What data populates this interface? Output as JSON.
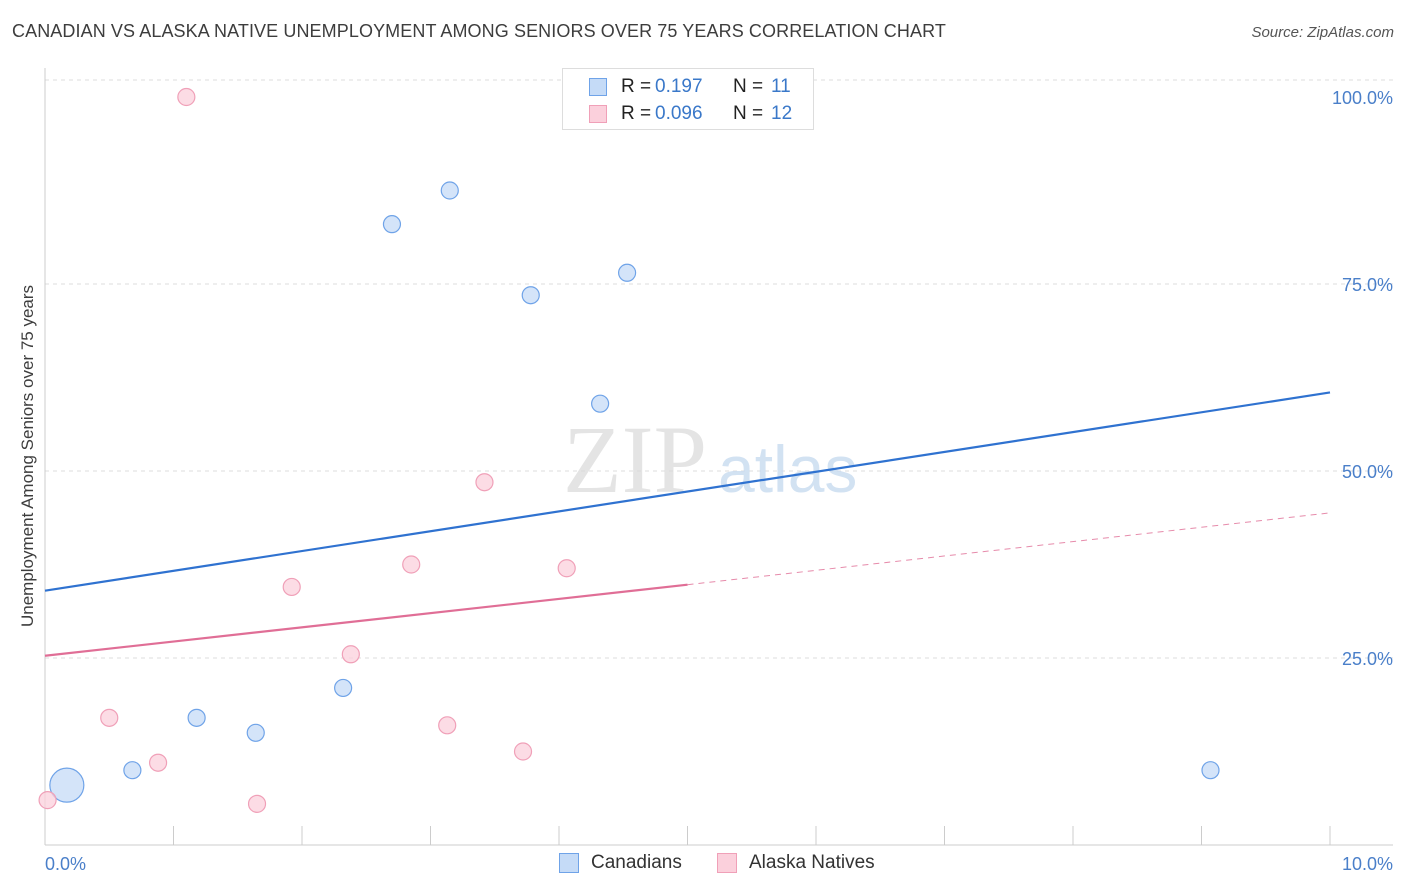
{
  "title": "CANADIAN VS ALASKA NATIVE UNEMPLOYMENT AMONG SENIORS OVER 75 YEARS CORRELATION CHART",
  "source": "Source: ZipAtlas.com",
  "watermark": {
    "zip": "ZIP",
    "atlas": "atlas"
  },
  "legend_top": {
    "rows": [
      {
        "r_label": "R =",
        "r_value": "0.197",
        "n_label": "N =",
        "n_value": "11"
      },
      {
        "r_label": "R =",
        "r_value": "0.096",
        "n_label": "N =",
        "n_value": "12"
      }
    ]
  },
  "legend_bottom": {
    "canadians": "Canadians",
    "alaska": "Alaska Natives"
  },
  "chart_data": {
    "type": "scatter",
    "title": "CANADIAN VS ALASKA NATIVE UNEMPLOYMENT AMONG SENIORS OVER 75 YEARS CORRELATION CHART",
    "xlabel": "",
    "ylabel": "Unemployment Among Seniors over 75 years",
    "xlim": [
      0,
      10
    ],
    "ylim": [
      0,
      100
    ],
    "x_tick_labels": [
      "0.0%",
      "10.0%"
    ],
    "y_ticks": [
      25,
      50,
      75,
      100
    ],
    "y_tick_labels": [
      "25.0%",
      "50.0%",
      "75.0%",
      "100.0%"
    ],
    "grid": true,
    "series": [
      {
        "name": "Canadians",
        "color": "#6fa3e8",
        "fill": "#c5dbf7",
        "line_color": "#2f72d0",
        "r": 0.197,
        "n": 11,
        "points": [
          {
            "x": 0.17,
            "y": 8.0,
            "size": "large"
          },
          {
            "x": 0.68,
            "y": 10.0
          },
          {
            "x": 1.18,
            "y": 17.0
          },
          {
            "x": 1.64,
            "y": 15.0
          },
          {
            "x": 2.32,
            "y": 21.0
          },
          {
            "x": 2.7,
            "y": 83.0
          },
          {
            "x": 3.15,
            "y": 87.5
          },
          {
            "x": 3.78,
            "y": 73.5
          },
          {
            "x": 4.32,
            "y": 59.0
          },
          {
            "x": 4.53,
            "y": 76.5
          },
          {
            "x": 9.07,
            "y": 10.0
          }
        ],
        "trend": {
          "x0": 0,
          "y0": 34.0,
          "x1": 10,
          "y1": 60.5
        }
      },
      {
        "name": "Alaska Natives",
        "color": "#f0a0b8",
        "fill": "#fbd0dc",
        "line_color": "#e06e96",
        "r": 0.096,
        "n": 12,
        "points": [
          {
            "x": 0.02,
            "y": 6.0
          },
          {
            "x": 0.5,
            "y": 17.0
          },
          {
            "x": 0.88,
            "y": 11.0
          },
          {
            "x": 1.1,
            "y": 100.0
          },
          {
            "x": 1.65,
            "y": 5.5
          },
          {
            "x": 1.92,
            "y": 34.5
          },
          {
            "x": 2.38,
            "y": 25.5
          },
          {
            "x": 2.85,
            "y": 37.5
          },
          {
            "x": 3.13,
            "y": 16.0
          },
          {
            "x": 3.42,
            "y": 48.5
          },
          {
            "x": 3.72,
            "y": 12.5
          },
          {
            "x": 4.06,
            "y": 37.0
          }
        ],
        "trend": {
          "x0": 0,
          "y0": 25.3,
          "x1": 5,
          "y1": 34.8
        },
        "trend_dashed": {
          "x0": 5,
          "y0": 34.8,
          "x1": 10,
          "y1": 44.4
        }
      }
    ]
  }
}
